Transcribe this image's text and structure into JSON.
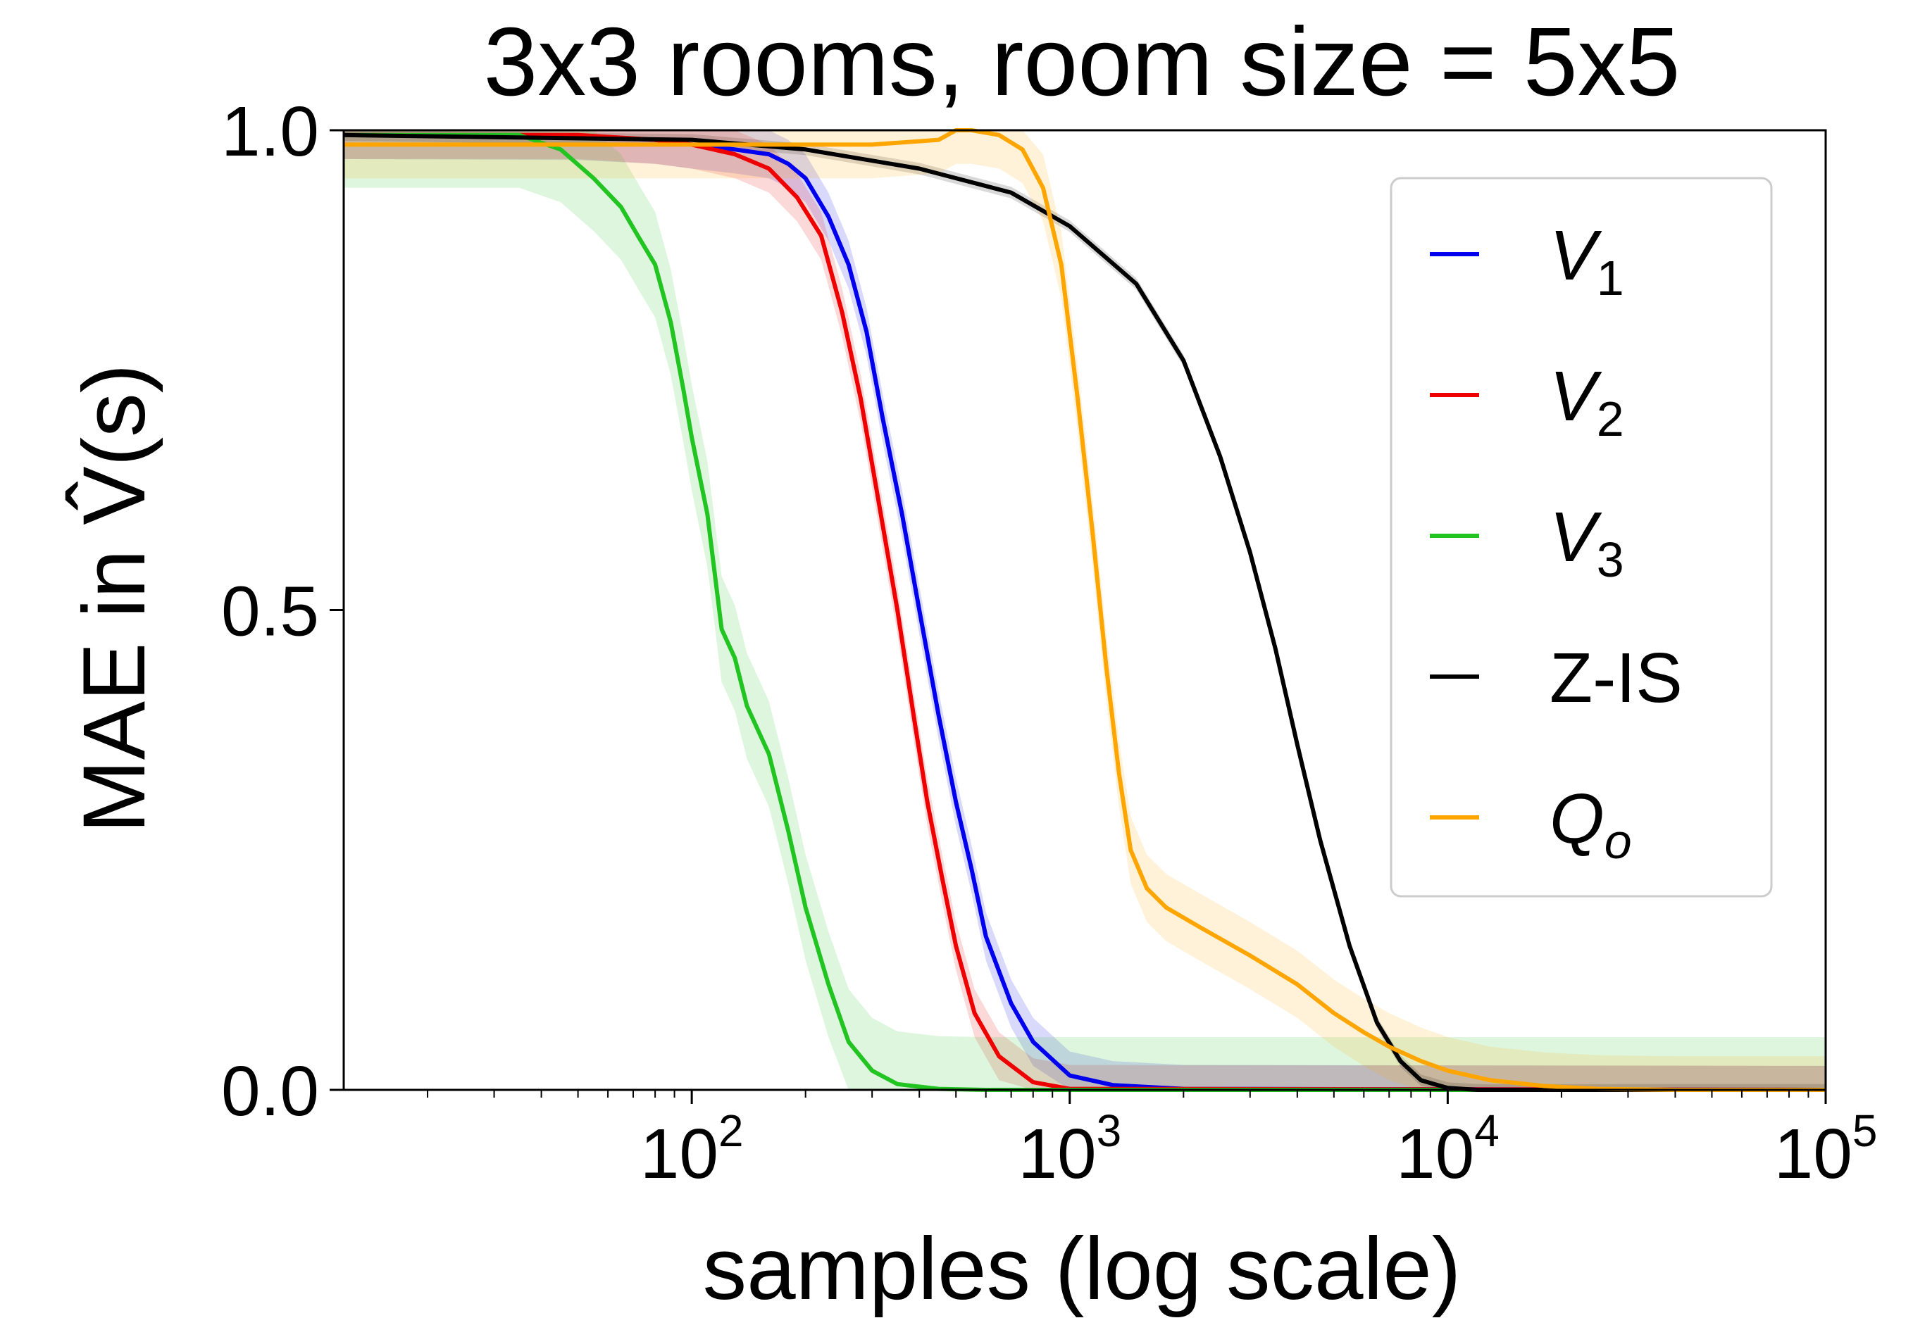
{
  "chart_data": {
    "type": "line",
    "title": "3x3 rooms, room size = 5x5",
    "xlabel": "samples (log scale)",
    "ylabel": "MAE in V̂(s)",
    "xscale": "log",
    "xlim": [
      12,
      100000
    ],
    "ylim": [
      0.0,
      1.0
    ],
    "grid": false,
    "legend_position": "upper-right",
    "x_ticks": [
      {
        "value": 100,
        "base": "10",
        "exp": "2"
      },
      {
        "value": 1000,
        "base": "10",
        "exp": "3"
      },
      {
        "value": 10000,
        "base": "10",
        "exp": "4"
      },
      {
        "value": 100000,
        "base": "10",
        "exp": "5"
      }
    ],
    "y_ticks": [
      {
        "value": 0.0,
        "label": "0.0"
      },
      {
        "value": 0.5,
        "label": "0.5"
      },
      {
        "value": 1.0,
        "label": "1.0"
      }
    ],
    "series": [
      {
        "name": "V",
        "sub": "1",
        "italic": true,
        "color": "#0000ee",
        "band": 0.025,
        "points": [
          [
            12,
            0.995
          ],
          [
            50,
            0.994
          ],
          [
            80,
            0.99
          ],
          [
            100,
            0.985
          ],
          [
            130,
            0.98
          ],
          [
            160,
            0.975
          ],
          [
            180,
            0.965
          ],
          [
            200,
            0.95
          ],
          [
            230,
            0.91
          ],
          [
            260,
            0.86
          ],
          [
            290,
            0.79
          ],
          [
            320,
            0.7
          ],
          [
            360,
            0.6
          ],
          [
            400,
            0.5
          ],
          [
            450,
            0.39
          ],
          [
            500,
            0.3
          ],
          [
            550,
            0.23
          ],
          [
            600,
            0.16
          ],
          [
            700,
            0.09
          ],
          [
            800,
            0.05
          ],
          [
            1000,
            0.015
          ],
          [
            1300,
            0.005
          ],
          [
            2000,
            0.001
          ],
          [
            100000,
            0.0
          ]
        ]
      },
      {
        "name": "V",
        "sub": "2",
        "italic": true,
        "color": "#ee0000",
        "band": 0.025,
        "points": [
          [
            12,
            0.995
          ],
          [
            50,
            0.995
          ],
          [
            80,
            0.99
          ],
          [
            100,
            0.985
          ],
          [
            130,
            0.975
          ],
          [
            160,
            0.96
          ],
          [
            190,
            0.93
          ],
          [
            220,
            0.89
          ],
          [
            250,
            0.81
          ],
          [
            280,
            0.72
          ],
          [
            310,
            0.62
          ],
          [
            350,
            0.5
          ],
          [
            390,
            0.38
          ],
          [
            420,
            0.3
          ],
          [
            460,
            0.22
          ],
          [
            500,
            0.15
          ],
          [
            560,
            0.08
          ],
          [
            650,
            0.035
          ],
          [
            800,
            0.008
          ],
          [
            1000,
            0.001
          ],
          [
            100000,
            0.0
          ]
        ]
      },
      {
        "name": "V",
        "sub": "3",
        "italic": true,
        "color": "#22c422",
        "band": 0.055,
        "points": [
          [
            12,
            0.995
          ],
          [
            35,
            0.995
          ],
          [
            45,
            0.98
          ],
          [
            55,
            0.95
          ],
          [
            65,
            0.92
          ],
          [
            72,
            0.89
          ],
          [
            80,
            0.86
          ],
          [
            88,
            0.8
          ],
          [
            95,
            0.73
          ],
          [
            100,
            0.68
          ],
          [
            110,
            0.6
          ],
          [
            120,
            0.48
          ],
          [
            130,
            0.45
          ],
          [
            140,
            0.4
          ],
          [
            160,
            0.35
          ],
          [
            180,
            0.27
          ],
          [
            200,
            0.19
          ],
          [
            230,
            0.11
          ],
          [
            260,
            0.05
          ],
          [
            300,
            0.02
          ],
          [
            350,
            0.006
          ],
          [
            450,
            0.001
          ],
          [
            600,
            0.0
          ],
          [
            100000,
            0.0
          ]
        ]
      },
      {
        "name": "Z-IS",
        "sub": "",
        "italic": false,
        "color": "#000000",
        "band": 0.006,
        "points": [
          [
            12,
            0.995
          ],
          [
            100,
            0.99
          ],
          [
            200,
            0.98
          ],
          [
            400,
            0.96
          ],
          [
            700,
            0.935
          ],
          [
            1000,
            0.9
          ],
          [
            1500,
            0.84
          ],
          [
            2000,
            0.76
          ],
          [
            2500,
            0.66
          ],
          [
            3000,
            0.56
          ],
          [
            3500,
            0.46
          ],
          [
            4000,
            0.36
          ],
          [
            4600,
            0.26
          ],
          [
            5500,
            0.15
          ],
          [
            6500,
            0.07
          ],
          [
            7500,
            0.03
          ],
          [
            8500,
            0.01
          ],
          [
            10000,
            0.002
          ],
          [
            12000,
            0.0
          ],
          [
            100000,
            0.0
          ]
        ]
      },
      {
        "name": "Q",
        "sub": "o",
        "italic": true,
        "color": "#ffa500",
        "band": 0.035,
        "points": [
          [
            12,
            0.985
          ],
          [
            150,
            0.985
          ],
          [
            300,
            0.985
          ],
          [
            450,
            0.99
          ],
          [
            500,
            1.0
          ],
          [
            550,
            1.0
          ],
          [
            650,
            0.995
          ],
          [
            750,
            0.98
          ],
          [
            850,
            0.94
          ],
          [
            950,
            0.86
          ],
          [
            1050,
            0.72
          ],
          [
            1150,
            0.58
          ],
          [
            1250,
            0.44
          ],
          [
            1350,
            0.33
          ],
          [
            1450,
            0.25
          ],
          [
            1600,
            0.21
          ],
          [
            1800,
            0.19
          ],
          [
            2200,
            0.17
          ],
          [
            3000,
            0.14
          ],
          [
            4000,
            0.11
          ],
          [
            5000,
            0.08
          ],
          [
            6000,
            0.06
          ],
          [
            7000,
            0.045
          ],
          [
            8500,
            0.03
          ],
          [
            10000,
            0.02
          ],
          [
            13000,
            0.01
          ],
          [
            18000,
            0.004
          ],
          [
            25000,
            0.001
          ],
          [
            40000,
            0.0
          ],
          [
            100000,
            0.0
          ]
        ]
      }
    ]
  }
}
